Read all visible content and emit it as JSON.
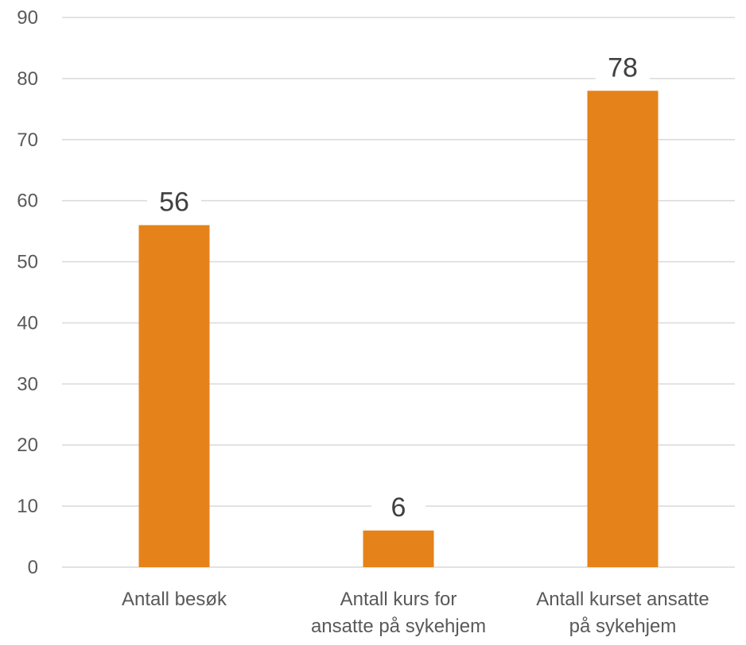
{
  "chart_data": {
    "type": "bar",
    "categories": [
      [
        "Antall besøk"
      ],
      [
        "Antall kurs for",
        "ansatte på sykehjem"
      ],
      [
        "Antall kurset ansatte",
        "på sykehjem"
      ]
    ],
    "values": [
      56,
      6,
      78
    ],
    "data_labels": [
      "56",
      "6",
      "78"
    ],
    "ylim": [
      0,
      90
    ],
    "yticks": [
      0,
      10,
      20,
      30,
      40,
      50,
      60,
      70,
      80,
      90
    ],
    "title": "",
    "xlabel": "",
    "ylabel": "",
    "grid": true,
    "legend": "none",
    "bar_color": "#E5821A"
  }
}
